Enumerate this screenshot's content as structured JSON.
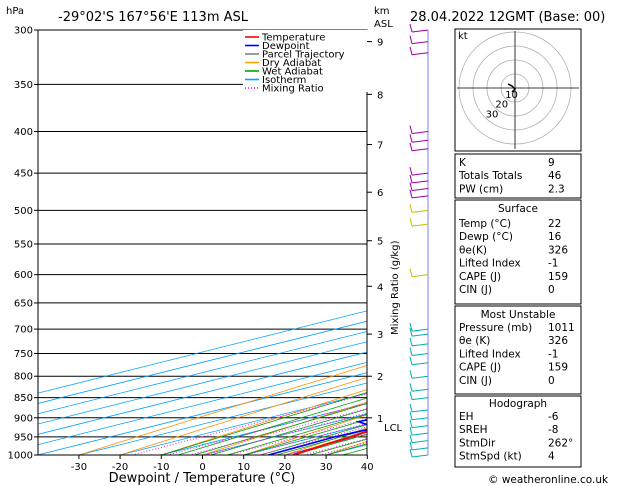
{
  "header": {
    "location": "-29°02'S 167°56'E 113m ASL",
    "datetime": "28.04.2022 12GMT (Base: 00)"
  },
  "axes": {
    "pressure_unit": "hPa",
    "height_unit_top": "km",
    "height_unit_bottom": "ASL",
    "mixing_ratio_label": "Mixing Ratio (g/kg)",
    "x_title": "Dewpoint / Temperature (°C)",
    "pressure_ticks": [
      "300",
      "350",
      "400",
      "450",
      "500",
      "550",
      "600",
      "650",
      "700",
      "750",
      "800",
      "850",
      "900",
      "950",
      "1000"
    ],
    "temp_ticks": [
      "-30",
      "-20",
      "-10",
      "0",
      "10",
      "20",
      "30",
      "40"
    ],
    "km_ticks": [
      "9",
      "8",
      "7",
      "6",
      "5",
      "4",
      "3",
      "2",
      "1"
    ],
    "lcl_label": "LCL",
    "mixing_ratio_values": [
      "1",
      "2",
      "3",
      "4",
      "6",
      "8",
      "10",
      "15",
      "20",
      "25"
    ]
  },
  "legend": {
    "items": [
      {
        "label": "Temperature",
        "color": "#ff0000",
        "dash": ""
      },
      {
        "label": "Dewpoint",
        "color": "#0000ff",
        "dash": ""
      },
      {
        "label": "Parcel Trajectory",
        "color": "#808080",
        "dash": ""
      },
      {
        "label": "Dry Adiabat",
        "color": "#ffa500",
        "dash": ""
      },
      {
        "label": "Wet Adiabat",
        "color": "#00aa00",
        "dash": ""
      },
      {
        "label": "Isotherm",
        "color": "#00a0ff",
        "dash": ""
      },
      {
        "label": "Mixing Ratio",
        "color": "#ff00ff",
        "dash": "1,2"
      }
    ]
  },
  "hodograph": {
    "unit_label": "kt",
    "ring_labels": [
      "10",
      "20",
      "30"
    ]
  },
  "indices": {
    "general": [
      {
        "name": "K",
        "value": "9"
      },
      {
        "name": "Totals Totals",
        "value": "46"
      },
      {
        "name": "PW (cm)",
        "value": "2.3"
      }
    ],
    "surface_title": "Surface",
    "surface": [
      {
        "name": "Temp (°C)",
        "value": "22"
      },
      {
        "name": "Dewp (°C)",
        "value": "16"
      },
      {
        "name": "θe(K)",
        "value": "326"
      },
      {
        "name": "Lifted Index",
        "value": "-1"
      },
      {
        "name": "CAPE (J)",
        "value": "159"
      },
      {
        "name": "CIN (J)",
        "value": "0"
      }
    ],
    "mu_title": "Most Unstable",
    "most_unstable": [
      {
        "name": "Pressure (mb)",
        "value": "1011"
      },
      {
        "name": "θe (K)",
        "value": "326"
      },
      {
        "name": "Lifted Index",
        "value": "-1"
      },
      {
        "name": "CAPE (J)",
        "value": "159"
      },
      {
        "name": "CIN (J)",
        "value": "0"
      }
    ],
    "hodo_title": "Hodograph",
    "hodograph": [
      {
        "name": "EH",
        "value": "-6"
      },
      {
        "name": "SREH",
        "value": "-8"
      },
      {
        "name": "StmDir",
        "value": "262°"
      },
      {
        "name": "StmSpd (kt)",
        "value": "4"
      }
    ]
  },
  "copyright": "© weatheronline.co.uk",
  "colors": {
    "temperature": "#ff0000",
    "dewpoint": "#0000ff",
    "parcel": "#909090",
    "dry_adiabat": "#ff8c00",
    "wet_adiabat": "#00a000",
    "isotherm": "#00a0ff",
    "mixing_ratio": "#ff00ff"
  },
  "chart_data": {
    "type": "line",
    "title": "28.04.2022 12GMT (Base: 00)",
    "xlabel": "Dewpoint / Temperature (°C)",
    "ylabel": "hPa",
    "xlim": [
      -35,
      40
    ],
    "ylim": [
      1000,
      300
    ],
    "y_scale": "log",
    "skew": true,
    "series": [
      {
        "name": "Temperature",
        "pressure": [
          1000,
          970,
          950,
          925,
          900,
          850,
          800,
          750,
          700,
          650,
          600,
          550,
          500,
          450,
          400,
          350,
          300
        ],
        "values": [
          22,
          19.6,
          18.5,
          16.2,
          14.5,
          11.5,
          8,
          4.5,
          0,
          -4.2,
          -8.3,
          -13,
          -17.5,
          -22.5,
          -30,
          -37,
          -43
        ]
      },
      {
        "name": "Dewpoint",
        "pressure": [
          1000,
          970,
          950,
          925,
          910,
          900,
          880,
          850,
          800,
          780,
          750,
          700,
          650,
          620,
          600,
          550,
          530,
          500,
          480,
          450,
          400,
          385,
          350,
          320,
          300
        ],
        "values": [
          16,
          15.2,
          14.5,
          15.5,
          5.5,
          6.5,
          6,
          2.5,
          -2.5,
          -28,
          -30.5,
          -32,
          -35,
          -40,
          -25.5,
          -32,
          -40.5,
          -36.5,
          -44,
          -47.5,
          -54,
          -53,
          -55,
          -46,
          -44
        ]
      },
      {
        "name": "Parcel Trajectory",
        "pressure": [
          1000,
          950,
          920,
          900,
          850,
          800,
          750,
          700,
          650,
          600,
          550,
          500,
          450,
          400,
          350,
          300
        ],
        "values": [
          22,
          18,
          15.5,
          15.8,
          12.5,
          9,
          5.5,
          1.5,
          -2.5,
          -6.5,
          -11,
          -16,
          -22,
          -29,
          -37,
          -45
        ]
      }
    ],
    "km_heights": [
      {
        "km": "1",
        "pressure": 900
      },
      {
        "km": "2",
        "pressure": 800
      },
      {
        "km": "3",
        "pressure": 710
      },
      {
        "km": "4",
        "pressure": 620
      },
      {
        "km": "5",
        "pressure": 545
      },
      {
        "km": "6",
        "pressure": 475
      },
      {
        "km": "7",
        "pressure": 415
      },
      {
        "km": "8",
        "pressure": 360
      },
      {
        "km": "9",
        "pressure": 310
      }
    ],
    "lcl_pressure": 920
  }
}
